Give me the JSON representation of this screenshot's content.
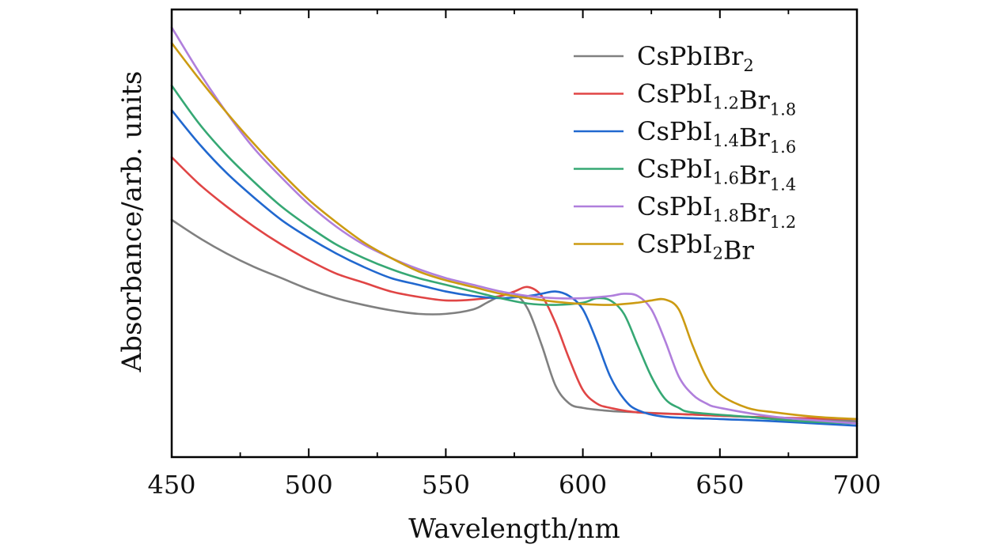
{
  "chart_data": {
    "type": "line",
    "title": "",
    "xlabel": "Wavelength/nm",
    "ylabel": "Absorbance/arb. units",
    "xlim": [
      450,
      700
    ],
    "ylim": [
      0,
      1
    ],
    "xticks": [
      450,
      500,
      550,
      600,
      650,
      700
    ],
    "xtick_labels": [
      "450",
      "500",
      "550",
      "600",
      "650",
      "700"
    ],
    "y_tick_labels": "none",
    "grid": false,
    "legend_position": "top-right",
    "series": [
      {
        "name": "CsPbIBr2",
        "label_parts": [
          [
            "CsPbIBr",
            "n"
          ],
          [
            "2",
            "sub"
          ]
        ],
        "color": "#808080",
        "points": [
          [
            450,
            0.53
          ],
          [
            460,
            0.49
          ],
          [
            470,
            0.455
          ],
          [
            480,
            0.425
          ],
          [
            490,
            0.4
          ],
          [
            500,
            0.375
          ],
          [
            510,
            0.355
          ],
          [
            520,
            0.34
          ],
          [
            530,
            0.328
          ],
          [
            540,
            0.32
          ],
          [
            550,
            0.32
          ],
          [
            560,
            0.33
          ],
          [
            565,
            0.345
          ],
          [
            570,
            0.36
          ],
          [
            575,
            0.365
          ],
          [
            580,
            0.33
          ],
          [
            585,
            0.25
          ],
          [
            590,
            0.16
          ],
          [
            595,
            0.12
          ],
          [
            600,
            0.11
          ],
          [
            610,
            0.103
          ],
          [
            620,
            0.1
          ],
          [
            640,
            0.095
          ],
          [
            660,
            0.09
          ],
          [
            680,
            0.085
          ],
          [
            700,
            0.08
          ]
        ]
      },
      {
        "name": "CsPbI1.2Br1.8",
        "label_parts": [
          [
            "CsPbI",
            "n"
          ],
          [
            "1.2",
            "sub"
          ],
          [
            "Br",
            "n"
          ],
          [
            "1.8",
            "sub"
          ]
        ],
        "color": "#E04545",
        "points": [
          [
            450,
            0.67
          ],
          [
            460,
            0.61
          ],
          [
            470,
            0.56
          ],
          [
            480,
            0.515
          ],
          [
            490,
            0.475
          ],
          [
            500,
            0.44
          ],
          [
            510,
            0.41
          ],
          [
            520,
            0.39
          ],
          [
            530,
            0.37
          ],
          [
            540,
            0.358
          ],
          [
            550,
            0.35
          ],
          [
            560,
            0.352
          ],
          [
            570,
            0.36
          ],
          [
            575,
            0.37
          ],
          [
            580,
            0.38
          ],
          [
            585,
            0.36
          ],
          [
            590,
            0.3
          ],
          [
            595,
            0.22
          ],
          [
            600,
            0.15
          ],
          [
            605,
            0.12
          ],
          [
            610,
            0.11
          ],
          [
            620,
            0.1
          ],
          [
            640,
            0.095
          ],
          [
            660,
            0.09
          ],
          [
            680,
            0.087
          ],
          [
            700,
            0.085
          ]
        ]
      },
      {
        "name": "CsPbI1.4Br1.6",
        "label_parts": [
          [
            "CsPbI",
            "n"
          ],
          [
            "1.4",
            "sub"
          ],
          [
            "Br",
            "n"
          ],
          [
            "1.6",
            "sub"
          ]
        ],
        "color": "#2168CF",
        "points": [
          [
            450,
            0.775
          ],
          [
            460,
            0.7
          ],
          [
            470,
            0.635
          ],
          [
            480,
            0.58
          ],
          [
            490,
            0.53
          ],
          [
            500,
            0.49
          ],
          [
            510,
            0.455
          ],
          [
            520,
            0.425
          ],
          [
            530,
            0.4
          ],
          [
            540,
            0.385
          ],
          [
            550,
            0.37
          ],
          [
            560,
            0.36
          ],
          [
            570,
            0.355
          ],
          [
            580,
            0.36
          ],
          [
            585,
            0.365
          ],
          [
            590,
            0.37
          ],
          [
            595,
            0.36
          ],
          [
            600,
            0.33
          ],
          [
            605,
            0.26
          ],
          [
            610,
            0.18
          ],
          [
            615,
            0.13
          ],
          [
            620,
            0.105
          ],
          [
            630,
            0.09
          ],
          [
            650,
            0.085
          ],
          [
            670,
            0.08
          ],
          [
            700,
            0.07
          ]
        ]
      },
      {
        "name": "CsPbI1.6Br1.4",
        "label_parts": [
          [
            "CsPbI",
            "n"
          ],
          [
            "1.6",
            "sub"
          ],
          [
            "Br",
            "n"
          ],
          [
            "1.4",
            "sub"
          ]
        ],
        "color": "#36A874",
        "points": [
          [
            450,
            0.83
          ],
          [
            460,
            0.745
          ],
          [
            470,
            0.675
          ],
          [
            480,
            0.615
          ],
          [
            490,
            0.56
          ],
          [
            500,
            0.515
          ],
          [
            510,
            0.475
          ],
          [
            520,
            0.445
          ],
          [
            530,
            0.42
          ],
          [
            540,
            0.4
          ],
          [
            550,
            0.385
          ],
          [
            560,
            0.37
          ],
          [
            570,
            0.355
          ],
          [
            580,
            0.343
          ],
          [
            590,
            0.34
          ],
          [
            600,
            0.345
          ],
          [
            605,
            0.355
          ],
          [
            610,
            0.35
          ],
          [
            615,
            0.32
          ],
          [
            620,
            0.25
          ],
          [
            625,
            0.18
          ],
          [
            630,
            0.13
          ],
          [
            635,
            0.11
          ],
          [
            640,
            0.1
          ],
          [
            660,
            0.09
          ],
          [
            680,
            0.08
          ],
          [
            700,
            0.075
          ]
        ]
      },
      {
        "name": "CsPbI1.8Br1.2",
        "label_parts": [
          [
            "CsPbI",
            "n"
          ],
          [
            "1.8",
            "sub"
          ],
          [
            "Br",
            "n"
          ],
          [
            "1.2",
            "sub"
          ]
        ],
        "color": "#B07FDC",
        "points": [
          [
            450,
            0.96
          ],
          [
            460,
            0.86
          ],
          [
            470,
            0.77
          ],
          [
            480,
            0.69
          ],
          [
            490,
            0.625
          ],
          [
            500,
            0.565
          ],
          [
            510,
            0.515
          ],
          [
            520,
            0.475
          ],
          [
            530,
            0.445
          ],
          [
            540,
            0.42
          ],
          [
            550,
            0.4
          ],
          [
            560,
            0.385
          ],
          [
            570,
            0.37
          ],
          [
            580,
            0.36
          ],
          [
            590,
            0.355
          ],
          [
            600,
            0.355
          ],
          [
            610,
            0.36
          ],
          [
            615,
            0.365
          ],
          [
            620,
            0.36
          ],
          [
            625,
            0.33
          ],
          [
            630,
            0.26
          ],
          [
            635,
            0.18
          ],
          [
            640,
            0.14
          ],
          [
            645,
            0.12
          ],
          [
            650,
            0.11
          ],
          [
            670,
            0.09
          ],
          [
            700,
            0.075
          ]
        ]
      },
      {
        "name": "CsPbI2Br",
        "label_parts": [
          [
            "CsPbI",
            "n"
          ],
          [
            "2",
            "sub"
          ],
          [
            "Br",
            "n"
          ]
        ],
        "color": "#CC9B12",
        "points": [
          [
            450,
            0.925
          ],
          [
            460,
            0.845
          ],
          [
            470,
            0.77
          ],
          [
            480,
            0.7
          ],
          [
            490,
            0.635
          ],
          [
            500,
            0.575
          ],
          [
            510,
            0.525
          ],
          [
            520,
            0.48
          ],
          [
            530,
            0.445
          ],
          [
            540,
            0.415
          ],
          [
            550,
            0.395
          ],
          [
            560,
            0.38
          ],
          [
            570,
            0.365
          ],
          [
            580,
            0.355
          ],
          [
            590,
            0.347
          ],
          [
            600,
            0.342
          ],
          [
            610,
            0.34
          ],
          [
            620,
            0.345
          ],
          [
            625,
            0.35
          ],
          [
            630,
            0.352
          ],
          [
            635,
            0.33
          ],
          [
            640,
            0.25
          ],
          [
            645,
            0.18
          ],
          [
            650,
            0.14
          ],
          [
            660,
            0.11
          ],
          [
            670,
            0.1
          ],
          [
            685,
            0.09
          ],
          [
            700,
            0.085
          ]
        ]
      }
    ]
  }
}
